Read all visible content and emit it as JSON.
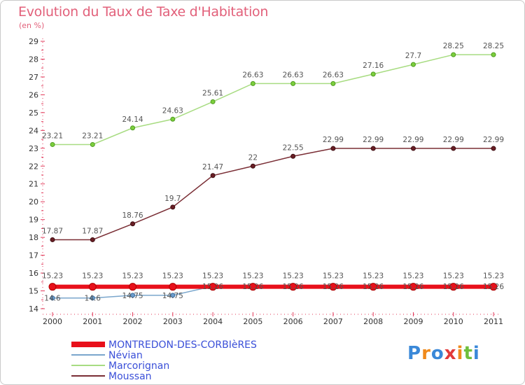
{
  "title": "Evolution du Taux de Taxe d'Habitation",
  "unit": "(en %)",
  "logo": {
    "letters": [
      "P",
      "r",
      "o",
      "x",
      "i",
      "t",
      "i"
    ],
    "colors": [
      "#3a88d8",
      "#f08a1c",
      "#3a88d8",
      "#e23a3a",
      "#f08a1c",
      "#6fbf3c",
      "#3a88d8"
    ]
  },
  "chart_data": {
    "type": "line",
    "x": [
      "2000",
      "2001",
      "2002",
      "2003",
      "2004",
      "2005",
      "2006",
      "2007",
      "2008",
      "2009",
      "2010",
      "2011"
    ],
    "ylim": [
      14,
      29
    ],
    "yticks": [
      14,
      15,
      16,
      17,
      18,
      19,
      20,
      21,
      22,
      23,
      24,
      25,
      26,
      27,
      28,
      29
    ],
    "grid": false,
    "legend_position": "bottom-left",
    "series": [
      {
        "name": "MONTREDON-DES-CORBIèRES",
        "color": "#e8101a",
        "width": 6,
        "values": [
          15.23,
          15.23,
          15.23,
          15.23,
          15.23,
          15.23,
          15.23,
          15.23,
          15.23,
          15.23,
          15.23,
          15.23
        ],
        "labels": [
          "15.23",
          "15.23",
          "15.23",
          "15.23",
          "15.23",
          "15.23",
          "15.23",
          "15.23",
          "15.23",
          "15.23",
          "15.23",
          "15.23"
        ]
      },
      {
        "name": "Névian",
        "color": "#7aa6cc",
        "width": 1.5,
        "values": [
          14.6,
          14.6,
          14.75,
          14.75,
          15.26,
          15.26,
          15.26,
          15.26,
          15.26,
          15.26,
          15.26,
          15.26
        ],
        "labels": [
          "14.6",
          "14.6",
          "14.75",
          "14.75",
          "15.26",
          "15.26",
          "15.26",
          "15.26",
          "15.26",
          "15.26",
          "15.26",
          "15.26"
        ]
      },
      {
        "name": "Marcorignan",
        "color": "#a8dc82",
        "width": 1.5,
        "values": [
          23.21,
          23.21,
          24.14,
          24.63,
          25.61,
          26.63,
          26.63,
          26.63,
          27.16,
          27.7,
          28.25,
          28.25
        ],
        "labels": [
          "23.21",
          "23.21",
          "24.14",
          "24.63",
          "25.61",
          "26.63",
          "26.63",
          "26.63",
          "27.16",
          "27.7",
          "28.25",
          "28.25"
        ]
      },
      {
        "name": "Moussan",
        "color": "#7a2e35",
        "width": 1.5,
        "values": [
          17.87,
          17.87,
          18.76,
          19.7,
          21.47,
          22,
          22.55,
          22.99,
          22.99,
          22.99,
          22.99,
          22.99
        ],
        "labels": [
          "17.87",
          "17.87",
          "18.76",
          "19.7",
          "21.47",
          "22",
          "22.55",
          "22.99",
          "22.99",
          "22.99",
          "22.99",
          "22.99"
        ]
      }
    ]
  }
}
